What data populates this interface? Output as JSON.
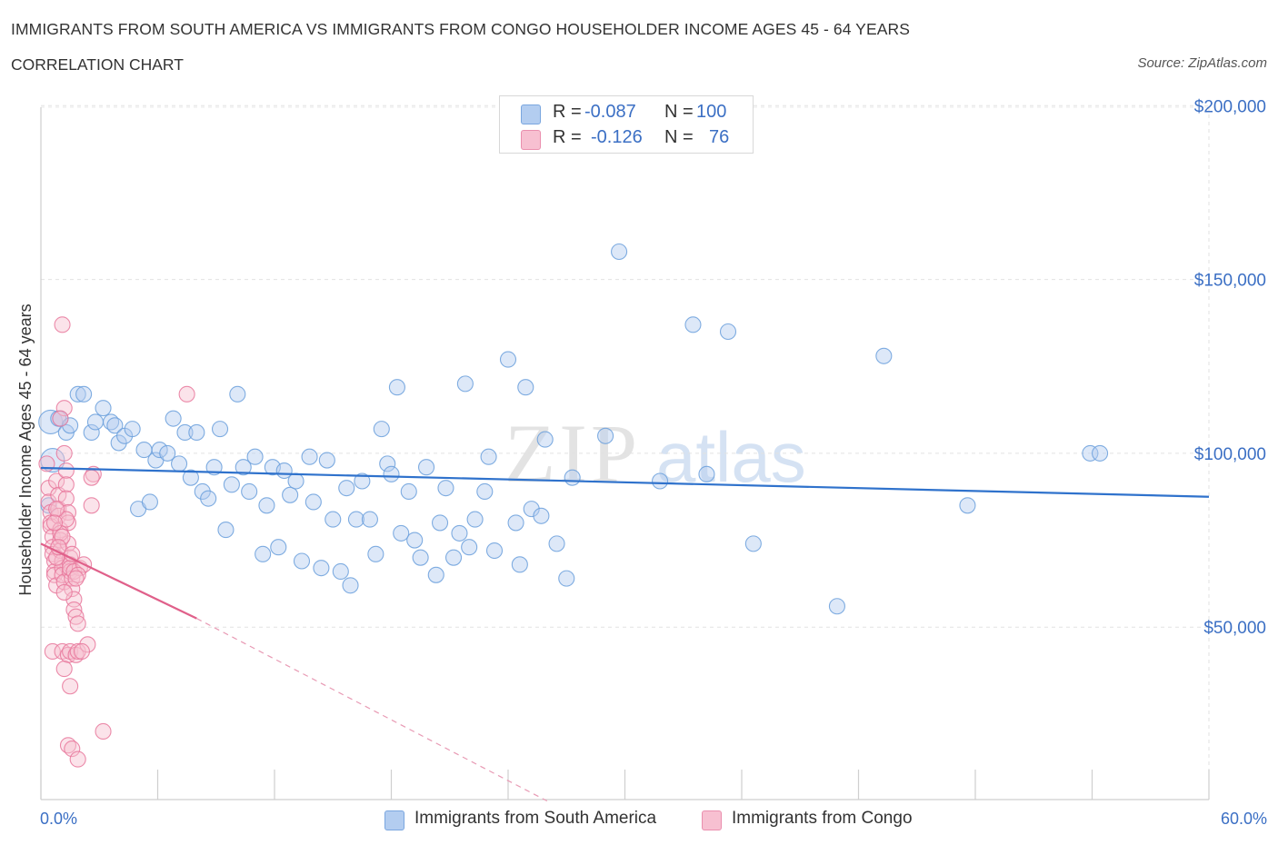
{
  "header": {
    "title": "IMMIGRANTS FROM SOUTH AMERICA VS IMMIGRANTS FROM CONGO HOUSEHOLDER INCOME AGES 45 - 64 YEARS",
    "subtitle": "CORRELATION CHART",
    "source": "Source: ZipAtlas.com"
  },
  "legend": {
    "rows": [
      {
        "r_label": "R =",
        "r_value": "-0.087",
        "n_label": "N =",
        "n_value": "100",
        "color": "#a8c8f0"
      },
      {
        "r_label": "R =",
        "r_value": "-0.126",
        "n_label": "N =",
        "n_value": "76",
        "color": "#f5b8cb"
      }
    ]
  },
  "watermark": {
    "zip": "ZIP",
    "atlas": "atlas"
  },
  "chart_data": {
    "type": "scatter",
    "ylabel": "Householder Income Ages 45 - 64 years",
    "xlabel": "",
    "xlim": [
      0,
      60
    ],
    "ylim": [
      0,
      205000
    ],
    "x_tick_labels": {
      "min": "0.0%",
      "max": "60.0%"
    },
    "y_ticks": [
      {
        "value": 200000,
        "label": "$200,000"
      },
      {
        "value": 150000,
        "label": "$150,000"
      },
      {
        "value": 100000,
        "label": "$100,000"
      },
      {
        "value": 50000,
        "label": "$50,000"
      }
    ],
    "grid": true,
    "legend_position": "bottom-center",
    "series": [
      {
        "name": "Immigrants from South America",
        "color": "#6a9fdc",
        "fill": "#b3cdf0",
        "trend": {
          "x0": 0,
          "y0": 95800,
          "x1": 60,
          "y1": 87500,
          "style": "solid"
        },
        "points": [
          [
            0.5,
            109000
          ],
          [
            0.6,
            98000
          ],
          [
            1.0,
            110000
          ],
          [
            1.3,
            106000
          ],
          [
            1.9,
            117000
          ],
          [
            2.2,
            117000
          ],
          [
            2.6,
            106000
          ],
          [
            2.8,
            109000
          ],
          [
            3.2,
            113000
          ],
          [
            3.6,
            109000
          ],
          [
            3.8,
            108000
          ],
          [
            4.0,
            103000
          ],
          [
            4.3,
            105000
          ],
          [
            4.7,
            107000
          ],
          [
            5.0,
            84000
          ],
          [
            5.3,
            101000
          ],
          [
            5.6,
            86000
          ],
          [
            5.9,
            98000
          ],
          [
            6.1,
            101000
          ],
          [
            6.5,
            100000
          ],
          [
            6.8,
            110000
          ],
          [
            7.1,
            97000
          ],
          [
            7.4,
            106000
          ],
          [
            7.7,
            93000
          ],
          [
            8.0,
            106000
          ],
          [
            8.3,
            89000
          ],
          [
            8.6,
            87000
          ],
          [
            8.9,
            96000
          ],
          [
            9.2,
            107000
          ],
          [
            9.5,
            78000
          ],
          [
            9.8,
            91000
          ],
          [
            10.1,
            117000
          ],
          [
            10.4,
            96000
          ],
          [
            10.7,
            89000
          ],
          [
            11.0,
            99000
          ],
          [
            11.4,
            71000
          ],
          [
            11.6,
            85000
          ],
          [
            11.9,
            96000
          ],
          [
            12.2,
            73000
          ],
          [
            12.5,
            95000
          ],
          [
            12.8,
            88000
          ],
          [
            13.1,
            92000
          ],
          [
            13.4,
            69000
          ],
          [
            13.8,
            99000
          ],
          [
            14.0,
            86000
          ],
          [
            14.4,
            67000
          ],
          [
            14.7,
            98000
          ],
          [
            15.0,
            81000
          ],
          [
            15.4,
            66000
          ],
          [
            15.7,
            90000
          ],
          [
            15.9,
            62000
          ],
          [
            16.2,
            81000
          ],
          [
            16.5,
            92000
          ],
          [
            16.9,
            81000
          ],
          [
            17.2,
            71000
          ],
          [
            17.5,
            107000
          ],
          [
            17.8,
            97000
          ],
          [
            18.0,
            94000
          ],
          [
            18.3,
            119000
          ],
          [
            18.5,
            77000
          ],
          [
            18.9,
            89000
          ],
          [
            19.2,
            75000
          ],
          [
            19.5,
            70000
          ],
          [
            19.8,
            96000
          ],
          [
            20.3,
            65000
          ],
          [
            20.5,
            80000
          ],
          [
            20.8,
            90000
          ],
          [
            21.2,
            70000
          ],
          [
            21.5,
            77000
          ],
          [
            21.8,
            120000
          ],
          [
            22.0,
            73000
          ],
          [
            22.3,
            81000
          ],
          [
            22.8,
            89000
          ],
          [
            23.0,
            99000
          ],
          [
            23.3,
            72000
          ],
          [
            24.0,
            127000
          ],
          [
            24.4,
            80000
          ],
          [
            24.6,
            68000
          ],
          [
            24.9,
            119000
          ],
          [
            25.2,
            84000
          ],
          [
            25.7,
            82000
          ],
          [
            25.9,
            104000
          ],
          [
            26.5,
            74000
          ],
          [
            27.0,
            64000
          ],
          [
            27.3,
            93000
          ],
          [
            29.0,
            105000
          ],
          [
            29.7,
            158000
          ],
          [
            31.8,
            92000
          ],
          [
            33.5,
            137000
          ],
          [
            34.2,
            94000
          ],
          [
            35.3,
            135000
          ],
          [
            36.6,
            74000
          ],
          [
            40.9,
            56000
          ],
          [
            43.3,
            128000
          ],
          [
            47.6,
            85000
          ],
          [
            53.9,
            100000
          ],
          [
            54.4,
            100000
          ],
          [
            0.9,
            110000
          ],
          [
            1.5,
            108000
          ],
          [
            0.4,
            85000
          ]
        ]
      },
      {
        "name": "Immigrants from Congo",
        "color": "#e7779b",
        "fill": "#f7c0d1",
        "trend": {
          "x0": 0,
          "y0": 74000,
          "x1": 8,
          "y1": 52500,
          "x_dash_end": 26,
          "y_dash_end": 0,
          "style": "solid-then-dashed"
        },
        "points": [
          [
            0.3,
            97000
          ],
          [
            0.4,
            90000
          ],
          [
            0.4,
            86000
          ],
          [
            0.5,
            83000
          ],
          [
            0.5,
            80000
          ],
          [
            0.5,
            79000
          ],
          [
            0.6,
            76000
          ],
          [
            0.6,
            73000
          ],
          [
            0.6,
            71000
          ],
          [
            0.7,
            69000
          ],
          [
            0.7,
            66000
          ],
          [
            0.7,
            65000
          ],
          [
            0.8,
            62000
          ],
          [
            0.8,
            92000
          ],
          [
            0.9,
            88000
          ],
          [
            0.9,
            84000
          ],
          [
            0.9,
            82000
          ],
          [
            1.0,
            78000
          ],
          [
            1.0,
            75000
          ],
          [
            1.0,
            72000
          ],
          [
            1.1,
            69000
          ],
          [
            1.1,
            67000
          ],
          [
            1.1,
            65000
          ],
          [
            1.2,
            63000
          ],
          [
            1.2,
            100000
          ],
          [
            1.3,
            95000
          ],
          [
            1.3,
            91000
          ],
          [
            1.3,
            87000
          ],
          [
            1.4,
            83000
          ],
          [
            1.4,
            80000
          ],
          [
            1.4,
            74000
          ],
          [
            1.5,
            70000
          ],
          [
            1.5,
            68000
          ],
          [
            1.5,
            66000
          ],
          [
            1.6,
            64000
          ],
          [
            1.6,
            61000
          ],
          [
            1.7,
            58000
          ],
          [
            1.7,
            55000
          ],
          [
            1.1,
            137000
          ],
          [
            1.2,
            113000
          ],
          [
            1.0,
            110000
          ],
          [
            1.8,
            53000
          ],
          [
            1.9,
            51000
          ],
          [
            0.6,
            43000
          ],
          [
            1.1,
            43000
          ],
          [
            1.4,
            42000
          ],
          [
            1.5,
            43000
          ],
          [
            1.8,
            42000
          ],
          [
            1.9,
            43000
          ],
          [
            1.2,
            38000
          ],
          [
            1.5,
            33000
          ],
          [
            2.4,
            45000
          ],
          [
            2.1,
            43000
          ],
          [
            1.4,
            16000
          ],
          [
            1.6,
            15000
          ],
          [
            1.9,
            12000
          ],
          [
            3.2,
            20000
          ],
          [
            7.5,
            117000
          ],
          [
            2.6,
            85000
          ],
          [
            2.7,
            94000
          ],
          [
            2.6,
            93000
          ],
          [
            1.3,
            81000
          ],
          [
            1.0,
            77000
          ],
          [
            0.8,
            70000
          ],
          [
            1.5,
            67000
          ],
          [
            2.0,
            67000
          ],
          [
            1.7,
            66000
          ],
          [
            2.2,
            68000
          ],
          [
            1.9,
            65000
          ],
          [
            1.6,
            71000
          ],
          [
            1.2,
            60000
          ],
          [
            0.8,
            84000
          ],
          [
            0.7,
            80000
          ],
          [
            1.1,
            76000
          ],
          [
            1.8,
            64000
          ],
          [
            0.9,
            73000
          ]
        ]
      }
    ]
  },
  "bottom_legend": {
    "items": [
      {
        "label": "Immigrants from South America",
        "color": "#a8c8f0"
      },
      {
        "label": "Immigrants from Congo",
        "color": "#f5b8cb"
      }
    ]
  }
}
